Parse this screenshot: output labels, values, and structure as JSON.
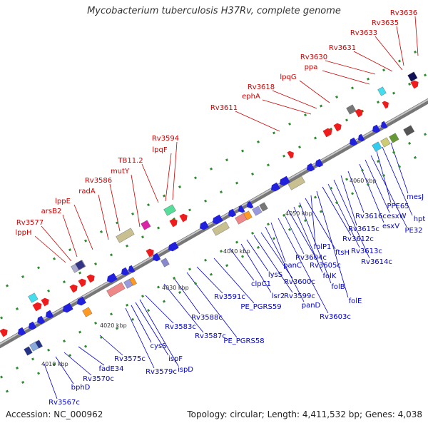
{
  "title": "Mycobacterium tuberculosis H37Rv, complete genome",
  "footer": {
    "accession": "Accession: NC_000962",
    "summary": "Topology: circular; Length: 4,411,532 bp; Genes: 4,038"
  },
  "colors": {
    "backbone": "#999999",
    "forward_label": "#cc0000",
    "reverse_label": "#0000cc",
    "tick_dot": "#2e8b2e"
  },
  "ticks": [
    "4010 kbp",
    "4020 kbp",
    "4030 kbp",
    "4040 kbp",
    "4050 kbp",
    "4060 kbp"
  ],
  "forward_genes": [
    "lppH",
    "Rv3577",
    "arsB2",
    "lppE",
    "radA",
    "Rv3586",
    "mutY",
    "TB11.2",
    "lpqF",
    "Rv3594",
    "Rv3611",
    "ephA",
    "Rv3618",
    "lpqG",
    "ppa",
    "Rv3630",
    "Rv3631",
    "Rv3633",
    "Rv3635",
    "Rv3636"
  ],
  "reverse_genes": [
    "Rv3567c",
    "bphD",
    "Rv3570c",
    "fadE34",
    "Rv3575c",
    "Rv3579c",
    "cysS",
    "ispF",
    "ispD",
    "Rv3583c",
    "Rv3587c",
    "Rv3588c",
    "PE_PGRS58",
    "Rv3591c",
    "PE_PGRS59",
    "clpC1",
    "lsr2",
    "lysS",
    "Rv3599c",
    "Rv3600c",
    "panD",
    "panC",
    "Rv3603c",
    "Rv3604c",
    "Rv3605c",
    "folK",
    "folB",
    "ftsH",
    "folP1",
    "folE",
    "Rv3612c",
    "Rv3613c",
    "Rv3614c",
    "Rv3615c",
    "Rv3616c",
    "esxV",
    "esxW",
    "PE32",
    "PPE65",
    "hpt",
    "mesJ"
  ]
}
